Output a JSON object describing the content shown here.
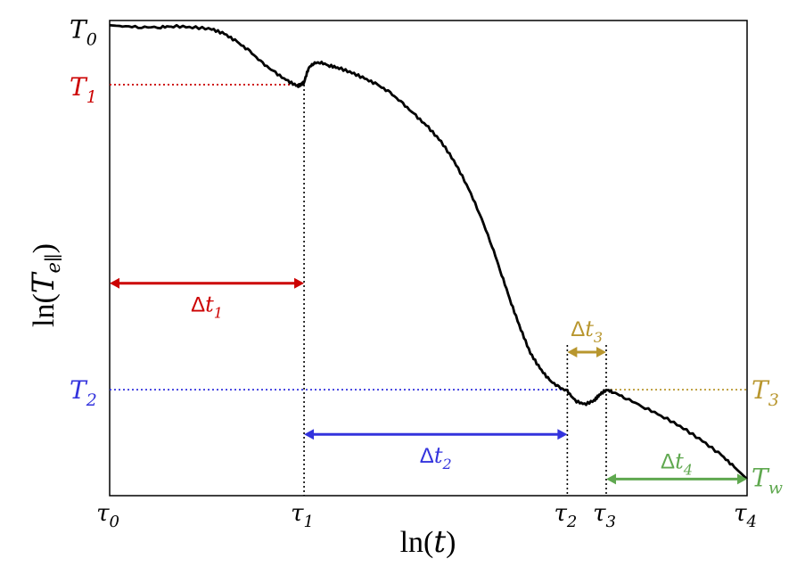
{
  "chart_data": {
    "type": "line",
    "title": "",
    "xlabel": {
      "fn": "ln(",
      "var": "t",
      "close": ")"
    },
    "ylabel": {
      "fn": "ln(",
      "var": "T",
      "sub": "e∥",
      "close": ")"
    },
    "xlim": [
      0,
      1
    ],
    "ylim": [
      0,
      1
    ],
    "grid": false,
    "legend": "none",
    "colors": {
      "curve": "#000000",
      "T1": "#cc0000",
      "T2": "#3333dd",
      "T3": "#b8962e",
      "Tw": "#5fa84f",
      "axis": "#000000"
    },
    "x_ticks": [
      {
        "base": "τ",
        "sub": "0",
        "x": 0.0
      },
      {
        "base": "τ",
        "sub": "1",
        "x": 0.305
      },
      {
        "base": "τ",
        "sub": "2",
        "x": 0.718
      },
      {
        "base": "τ",
        "sub": "3",
        "x": 0.779
      },
      {
        "base": "τ",
        "sub": "4",
        "x": 1.0
      }
    ],
    "y_levels": [
      {
        "id": "T0",
        "base": "T",
        "sub": "0",
        "y": 0.99,
        "color": "#000000",
        "line": false
      },
      {
        "id": "T1",
        "base": "T",
        "sub": "1",
        "y": 0.865,
        "color": "#cc0000",
        "line": true,
        "x_from": 0.0,
        "x_to": 0.305
      },
      {
        "id": "T2",
        "base": "T",
        "sub": "2",
        "y": 0.223,
        "color": "#3333dd",
        "line": true,
        "x_from": 0.0,
        "x_to": 0.718
      },
      {
        "id": "T3",
        "base": "T",
        "sub": "3",
        "y": 0.223,
        "color": "#b8962e",
        "line": true,
        "x_from": 0.779,
        "x_to": 1.0
      },
      {
        "id": "Tw",
        "base": "T",
        "sub": "w",
        "y": 0.035,
        "color": "#5fa84f",
        "line": false
      }
    ],
    "intervals": [
      {
        "id": "dt1",
        "base": "Δt",
        "sub": "1",
        "x_from": 0.0,
        "x_to": 0.305,
        "y": 0.447,
        "color": "#cc0000"
      },
      {
        "id": "dt2",
        "base": "Δt",
        "sub": "2",
        "x_from": 0.305,
        "x_to": 0.718,
        "y": 0.129,
        "color": "#3333dd"
      },
      {
        "id": "dt3",
        "base": "Δt",
        "sub": "3",
        "x_from": 0.718,
        "x_to": 0.779,
        "y": 0.302,
        "color": "#b8962e"
      },
      {
        "id": "dt4",
        "base": "Δt",
        "sub": "4",
        "x_from": 0.779,
        "x_to": 1.0,
        "y": 0.035,
        "color": "#5fa84f"
      }
    ],
    "series": [
      {
        "x": [
          0.0,
          0.02,
          0.05,
          0.08,
          0.1,
          0.13,
          0.16,
          0.18,
          0.2,
          0.22,
          0.24,
          0.26,
          0.28,
          0.295,
          0.3,
          0.305,
          0.312,
          0.32,
          0.33,
          0.345,
          0.36,
          0.38,
          0.4,
          0.42,
          0.44,
          0.46,
          0.48,
          0.5,
          0.52,
          0.54,
          0.56,
          0.58,
          0.6,
          0.615,
          0.63,
          0.645,
          0.66,
          0.675,
          0.69,
          0.705,
          0.718,
          0.73,
          0.745,
          0.76,
          0.768,
          0.779,
          0.79,
          0.81,
          0.84,
          0.87,
          0.9,
          0.93,
          0.96,
          0.98,
          1.0
        ],
        "y": [
          0.99,
          0.988,
          0.986,
          0.986,
          0.988,
          0.986,
          0.982,
          0.972,
          0.955,
          0.935,
          0.91,
          0.89,
          0.872,
          0.862,
          0.865,
          0.87,
          0.9,
          0.91,
          0.912,
          0.905,
          0.9,
          0.89,
          0.878,
          0.865,
          0.848,
          0.825,
          0.8,
          0.775,
          0.745,
          0.705,
          0.655,
          0.595,
          0.525,
          0.465,
          0.405,
          0.35,
          0.3,
          0.268,
          0.243,
          0.228,
          0.22,
          0.2,
          0.192,
          0.2,
          0.212,
          0.223,
          0.218,
          0.205,
          0.185,
          0.165,
          0.142,
          0.115,
          0.085,
          0.06,
          0.035
        ]
      }
    ]
  }
}
